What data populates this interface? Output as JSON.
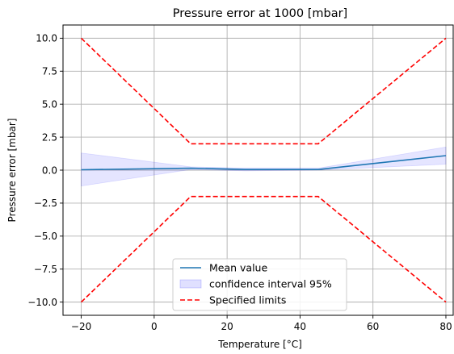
{
  "chart_data": {
    "type": "line",
    "title": "Pressure error at 1000 [mbar]",
    "xlabel": "Temperature [°C]",
    "ylabel": "Pressure error [mbar]",
    "xlim": [
      -25,
      82
    ],
    "ylim": [
      -11,
      11
    ],
    "xticks": [
      -20,
      0,
      20,
      40,
      60,
      80
    ],
    "xtick_labels": [
      "−20",
      "0",
      "20",
      "40",
      "60",
      "80"
    ],
    "yticks": [
      -10,
      -7.5,
      -5,
      -2.5,
      0,
      2.5,
      5,
      7.5,
      10
    ],
    "ytick_labels": [
      "−10.0",
      "−7.5",
      "−5.0",
      "−2.5",
      "0.0",
      "2.5",
      "5.0",
      "7.5",
      "10.0"
    ],
    "grid": true,
    "legend_position": "bottom-center",
    "series": [
      {
        "name": "Mean value",
        "kind": "line",
        "color": "#1f77b4",
        "x": [
          -20,
          10,
          25,
          45,
          80
        ],
        "y": [
          0.03,
          0.15,
          0.05,
          0.05,
          1.1
        ]
      },
      {
        "name": "confidence interval 95%",
        "kind": "band",
        "color": "#0000ff",
        "x": [
          -20,
          10,
          25,
          45,
          80
        ],
        "lower": [
          -1.2,
          0.05,
          -0.05,
          0.0,
          0.45
        ],
        "upper": [
          1.3,
          0.25,
          0.15,
          0.15,
          1.75
        ]
      },
      {
        "name": "Specified limits",
        "kind": "dashed",
        "color": "#ff0000",
        "upper": {
          "x": [
            -20,
            10,
            45,
            80
          ],
          "y": [
            10,
            2,
            2,
            10
          ]
        },
        "lower": {
          "x": [
            -20,
            10,
            45,
            80
          ],
          "y": [
            -10,
            -2,
            -2,
            -10
          ]
        }
      }
    ]
  }
}
